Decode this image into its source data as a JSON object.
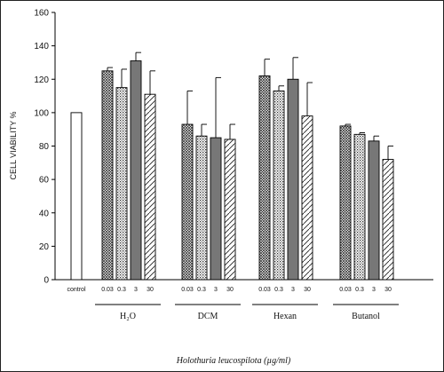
{
  "chart_data": {
    "type": "bar",
    "ylabel": "CELL VIABILITY %",
    "xlabel": "Holothuria leucospilota (µg/ml)",
    "ylim": [
      0,
      160
    ],
    "yticks": [
      "0",
      "20",
      "40",
      "60",
      "80",
      "100",
      "120",
      "140",
      "160"
    ],
    "grid": false,
    "control": {
      "label": "control",
      "value": 100,
      "error": 0
    },
    "concentrations": [
      "0.03",
      "0.3",
      "3",
      "30"
    ],
    "patterns": [
      "crosshatch",
      "dotted",
      "dark-gray",
      "diagonal"
    ],
    "groups": [
      {
        "name": "H₂O",
        "values": [
          125,
          115,
          131,
          111
        ],
        "errors": [
          2,
          11,
          5,
          14
        ]
      },
      {
        "name": "DCM",
        "values": [
          93,
          86,
          85,
          84
        ],
        "errors": [
          20,
          7,
          36,
          9
        ]
      },
      {
        "name": "Hexan",
        "values": [
          122,
          113,
          120,
          98
        ],
        "errors": [
          10,
          3,
          13,
          20
        ]
      },
      {
        "name": "Butanol",
        "values": [
          92,
          87,
          83,
          72
        ],
        "errors": [
          1,
          1,
          3,
          8
        ]
      }
    ]
  }
}
